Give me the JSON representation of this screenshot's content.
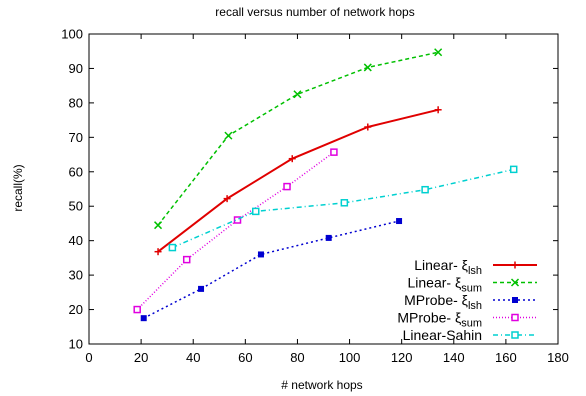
{
  "chart_data": {
    "type": "line",
    "title": "recall versus number of network hops",
    "xlabel": "# network hops",
    "ylabel": "recall(%)",
    "xlim": [
      0,
      180
    ],
    "ylim": [
      10,
      100
    ],
    "xticks": [
      0,
      20,
      40,
      60,
      80,
      100,
      120,
      140,
      160,
      180
    ],
    "yticks": [
      10,
      20,
      30,
      40,
      50,
      60,
      70,
      80,
      90,
      100
    ],
    "grid": false,
    "legend_position": "bottom-right",
    "series": [
      {
        "name": "Linear- ξlsh",
        "name_parts": [
          "Linear- ξ",
          "lsh"
        ],
        "color": "#e00000",
        "dash": "",
        "marker": "plus",
        "x": [
          26.5,
          53,
          78,
          107,
          134
        ],
        "y": [
          36.8,
          52.2,
          63.8,
          73,
          78
        ]
      },
      {
        "name": "Linear- ξsum",
        "name_parts": [
          "Linear- ξ",
          "sum"
        ],
        "color": "#00c000",
        "dash": "4,3",
        "marker": "x",
        "x": [
          26.5,
          53.5,
          80,
          107,
          134
        ],
        "y": [
          44.5,
          70.5,
          82.5,
          90.3,
          94.7
        ]
      },
      {
        "name": "MProbe- ξlsh",
        "name_parts": [
          "MProbe- ξ",
          "lsh"
        ],
        "color": "#0000d0",
        "dash": "2,3",
        "marker": "square",
        "x": [
          21,
          43,
          66,
          92,
          119
        ],
        "y": [
          17.5,
          26,
          36,
          40.8,
          45.7
        ]
      },
      {
        "name": "MProbe- ξsum",
        "name_parts": [
          "MProbe- ξ",
          "sum"
        ],
        "color": "#e000e0",
        "dash": "1,2",
        "marker": "square-open",
        "x": [
          18.5,
          37.5,
          57,
          76,
          94
        ],
        "y": [
          20,
          34.5,
          46,
          55.7,
          65.7
        ]
      },
      {
        "name": "Linear-Sahin",
        "name_parts": [
          "Linear-Sahin",
          ""
        ],
        "color": "#00d0d0",
        "dash": "5,3,1,3",
        "marker": "square-open",
        "x": [
          32,
          64,
          98,
          129,
          163
        ],
        "y": [
          38,
          48.5,
          51,
          54.8,
          60.7
        ]
      }
    ]
  }
}
